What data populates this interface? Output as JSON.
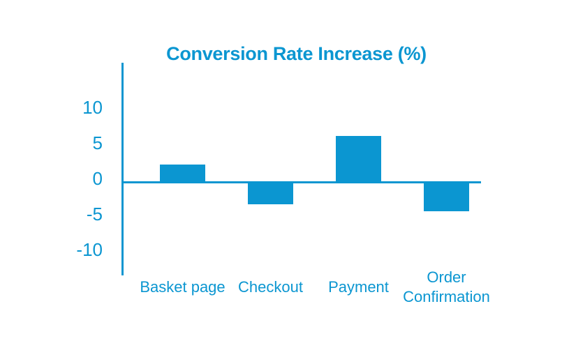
{
  "chart_data": {
    "type": "bar",
    "title": "Conversion Rate Increase (%)",
    "categories": [
      "Basket page",
      "Checkout",
      "Payment",
      "Order Confirmation"
    ],
    "values": [
      2.5,
      -3,
      6.5,
      -4
    ],
    "series": [
      {
        "name": "Conversion Rate Increase (%)",
        "values": [
          2.5,
          -3,
          6.5,
          -4
        ]
      }
    ],
    "xlabel": "",
    "ylabel": "",
    "y_ticks": [
      10,
      5,
      0,
      -5,
      -10
    ],
    "ylim": [
      -10,
      10
    ],
    "grid": false,
    "legend": "none",
    "accent_color": "#0B96D1",
    "background_color": "#FFFFFF"
  }
}
